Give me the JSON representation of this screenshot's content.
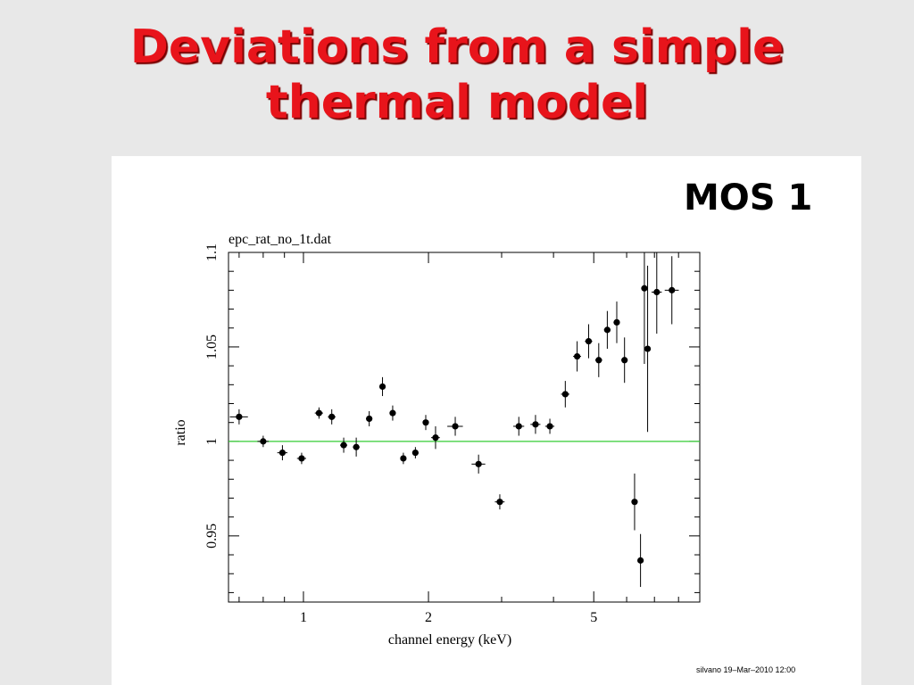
{
  "slide": {
    "title_line1": "Deviations from a simple",
    "title_line2": "thermal model",
    "instrument_label": "MOS 1",
    "footer": "silvano 19–Mar–2010 12:00"
  },
  "chart_data": {
    "type": "scatter",
    "title": "epc_rat_no_1t.dat",
    "xlabel": "channel energy (keV)",
    "ylabel": "ratio",
    "xscale": "log",
    "xlim": [
      0.66,
      9.0
    ],
    "ylim": [
      0.915,
      1.1
    ],
    "xticks": [
      1,
      2,
      5
    ],
    "xtick_labels": [
      "1",
      "2",
      "5"
    ],
    "yticks": [
      0.95,
      1,
      1.05,
      1.1
    ],
    "ytick_labels": [
      "0.95",
      "1",
      "1.05",
      "1.1"
    ],
    "reference_line": {
      "y": 1,
      "color": "#33cc33"
    },
    "series": [
      {
        "marker_color": "#000000",
        "points": [
          {
            "x": 0.7,
            "y": 1.013,
            "xerr": 0.035,
            "yerr": 0.004
          },
          {
            "x": 0.8,
            "y": 1.0,
            "xerr": 0.025,
            "yerr": 0.003
          },
          {
            "x": 0.89,
            "y": 0.994,
            "xerr": 0.025,
            "yerr": 0.004
          },
          {
            "x": 0.99,
            "y": 0.991,
            "xerr": 0.025,
            "yerr": 0.003
          },
          {
            "x": 1.09,
            "y": 1.015,
            "xerr": 0.025,
            "yerr": 0.003
          },
          {
            "x": 1.17,
            "y": 1.013,
            "xerr": 0.025,
            "yerr": 0.004
          },
          {
            "x": 1.25,
            "y": 0.998,
            "xerr": 0.025,
            "yerr": 0.004
          },
          {
            "x": 1.34,
            "y": 0.997,
            "xerr": 0.025,
            "yerr": 0.005
          },
          {
            "x": 1.44,
            "y": 1.012,
            "xerr": 0.025,
            "yerr": 0.004
          },
          {
            "x": 1.55,
            "y": 1.029,
            "xerr": 0.02,
            "yerr": 0.005
          },
          {
            "x": 1.64,
            "y": 1.015,
            "xerr": 0.025,
            "yerr": 0.004
          },
          {
            "x": 1.74,
            "y": 0.991,
            "xerr": 0.025,
            "yerr": 0.003
          },
          {
            "x": 1.86,
            "y": 0.994,
            "xerr": 0.025,
            "yerr": 0.003
          },
          {
            "x": 1.97,
            "y": 1.01,
            "xerr": 0.03,
            "yerr": 0.004
          },
          {
            "x": 2.08,
            "y": 1.002,
            "xerr": 0.05,
            "yerr": 0.006
          },
          {
            "x": 2.32,
            "y": 1.008,
            "xerr": 0.1,
            "yerr": 0.005
          },
          {
            "x": 2.64,
            "y": 0.988,
            "xerr": 0.1,
            "yerr": 0.005
          },
          {
            "x": 2.97,
            "y": 0.968,
            "xerr": 0.08,
            "yerr": 0.004
          },
          {
            "x": 3.3,
            "y": 1.008,
            "xerr": 0.1,
            "yerr": 0.005
          },
          {
            "x": 3.62,
            "y": 1.009,
            "xerr": 0.1,
            "yerr": 0.005
          },
          {
            "x": 3.92,
            "y": 1.008,
            "xerr": 0.1,
            "yerr": 0.004
          },
          {
            "x": 4.27,
            "y": 1.025,
            "xerr": 0.1,
            "yerr": 0.007
          },
          {
            "x": 4.56,
            "y": 1.045,
            "xerr": 0.1,
            "yerr": 0.008
          },
          {
            "x": 4.86,
            "y": 1.053,
            "xerr": 0.1,
            "yerr": 0.009
          },
          {
            "x": 5.14,
            "y": 1.043,
            "xerr": 0.1,
            "yerr": 0.009
          },
          {
            "x": 5.39,
            "y": 1.059,
            "xerr": 0.1,
            "yerr": 0.01
          },
          {
            "x": 5.68,
            "y": 1.063,
            "xerr": 0.1,
            "yerr": 0.011
          },
          {
            "x": 5.93,
            "y": 1.043,
            "xerr": 0.1,
            "yerr": 0.012
          },
          {
            "x": 6.27,
            "y": 0.968,
            "xerr": 0.06,
            "yerr": 0.015
          },
          {
            "x": 6.48,
            "y": 0.937,
            "xerr": 0.05,
            "yerr": 0.014
          },
          {
            "x": 6.62,
            "y": 1.081,
            "xerr": 0.06,
            "yerr": 0.04
          },
          {
            "x": 6.74,
            "y": 1.049,
            "xerr": 0.06,
            "yerr": 0.044
          },
          {
            "x": 7.09,
            "y": 1.079,
            "xerr": 0.2,
            "yerr": 0.022
          },
          {
            "x": 7.71,
            "y": 1.08,
            "xerr": 0.3,
            "yerr": 0.018
          }
        ]
      }
    ]
  }
}
